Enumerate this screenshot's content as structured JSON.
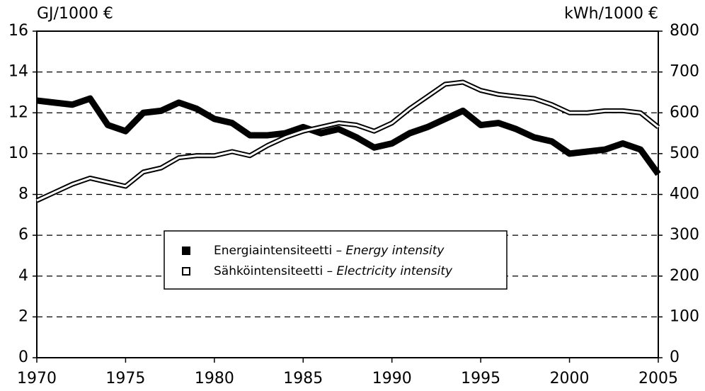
{
  "chart_data": {
    "type": "line",
    "y_label": "GJ/1000 €",
    "y2_label": "kWh/1000 €",
    "x": [
      1970,
      1971,
      1972,
      1973,
      1974,
      1975,
      1976,
      1977,
      1978,
      1979,
      1980,
      1981,
      1982,
      1983,
      1984,
      1985,
      1986,
      1987,
      1988,
      1989,
      1990,
      1991,
      1992,
      1993,
      1994,
      1995,
      1996,
      1997,
      1998,
      1999,
      2000,
      2001,
      2002,
      2003,
      2004,
      2005
    ],
    "xlim": [
      1970,
      2005
    ],
    "xticks": [
      1970,
      1975,
      1980,
      1985,
      1990,
      1995,
      2000,
      2005
    ],
    "ylim": [
      0,
      16
    ],
    "yticks": [
      0,
      2,
      4,
      6,
      8,
      10,
      12,
      14,
      16
    ],
    "y2lim": [
      0,
      800
    ],
    "y2ticks": [
      0,
      100,
      200,
      300,
      400,
      500,
      600,
      700,
      800
    ],
    "grid": true,
    "legend": "center",
    "series": [
      {
        "name": "Energiaintensiteetti – Energy intensity",
        "color": "#000000",
        "style": "thick",
        "values": [
          12.6,
          12.5,
          12.4,
          12.7,
          11.4,
          11.1,
          12.0,
          12.1,
          12.5,
          12.2,
          11.7,
          11.5,
          10.9,
          10.9,
          11.0,
          11.3,
          11.0,
          11.2,
          10.8,
          10.3,
          10.5,
          11.0,
          11.3,
          11.7,
          12.1,
          11.4,
          11.5,
          11.2,
          10.8,
          10.6,
          10.0,
          10.1,
          10.2,
          10.5,
          10.2,
          9.0
        ]
      },
      {
        "name": "Sähköintensiteetti – Electricity intensity",
        "color": "#000000",
        "style": "double",
        "axis": "y2",
        "values": [
          385,
          405,
          425,
          440,
          430,
          420,
          455,
          465,
          490,
          495,
          495,
          505,
          495,
          520,
          540,
          555,
          565,
          575,
          570,
          555,
          575,
          610,
          640,
          670,
          675,
          655,
          645,
          640,
          635,
          620,
          600,
          600,
          605,
          605,
          600,
          565
        ]
      }
    ]
  }
}
